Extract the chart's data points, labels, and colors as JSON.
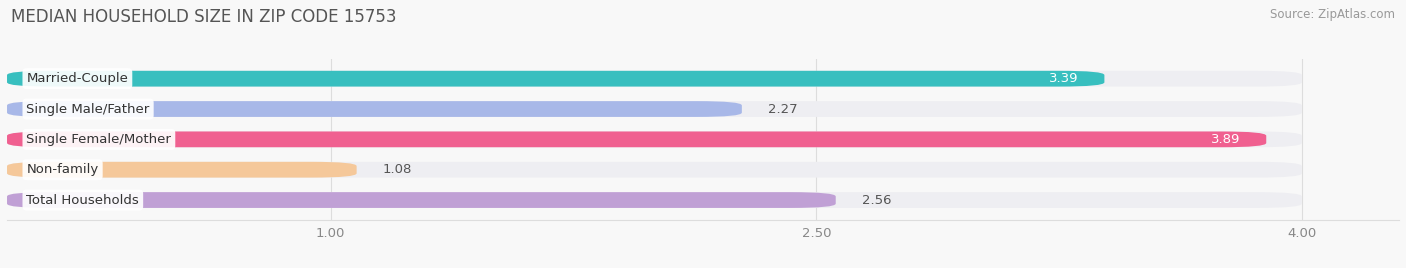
{
  "title": "MEDIAN HOUSEHOLD SIZE IN ZIP CODE 15753",
  "source": "Source: ZipAtlas.com",
  "categories": [
    "Married-Couple",
    "Single Male/Father",
    "Single Female/Mother",
    "Non-family",
    "Total Households"
  ],
  "values": [
    3.39,
    2.27,
    3.89,
    1.08,
    2.56
  ],
  "bar_colors": [
    "#38bfbf",
    "#a8b8e8",
    "#f06090",
    "#f5c89a",
    "#c0a0d5"
  ],
  "bar_bg_color": "#eeeef2",
  "xlim": [
    0.0,
    4.3
  ],
  "xstart": 0.0,
  "xend": 4.0,
  "xticks": [
    1.0,
    2.5,
    4.0
  ],
  "xtick_labels": [
    "1.00",
    "2.50",
    "4.00"
  ],
  "label_fontsize": 9.5,
  "value_fontsize": 9.5,
  "title_fontsize": 12,
  "source_fontsize": 8.5,
  "background_color": "#f8f8f8",
  "value_label_color_inside": [
    "#ffffff",
    "#ffffff",
    "#ffffff",
    "#666666",
    "#666666"
  ]
}
